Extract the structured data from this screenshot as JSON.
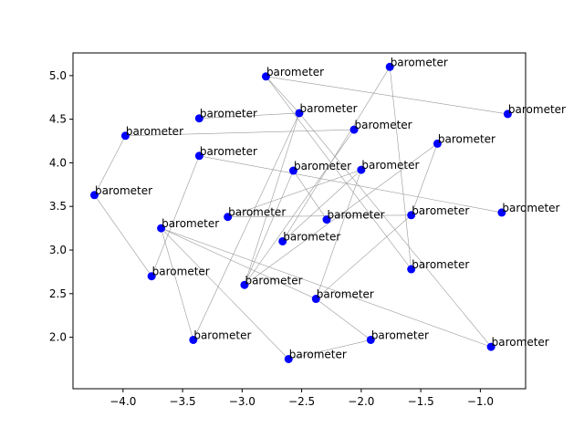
{
  "chart_data": {
    "type": "scatter",
    "title": "",
    "xlabel": "",
    "ylabel": "",
    "xlim": [
      -4.42,
      -0.62
    ],
    "ylim": [
      1.41,
      5.26
    ],
    "xticks": [
      -4.0,
      -3.5,
      -3.0,
      -2.5,
      -2.0,
      -1.5,
      -1.0
    ],
    "xtick_labels": [
      "−4.0",
      "−3.5",
      "−3.0",
      "−2.5",
      "−2.0",
      "−1.5",
      "−1.0"
    ],
    "yticks": [
      2.0,
      2.5,
      3.0,
      3.5,
      4.0,
      4.5,
      5.0
    ],
    "ytick_labels": [
      "2.0",
      "2.5",
      "3.0",
      "3.5",
      "4.0",
      "4.5",
      "5.0"
    ],
    "grid": false,
    "marker_color": "#0000ff",
    "edge_color": "#999999",
    "points": [
      {
        "x": -4.24,
        "y": 3.63,
        "label": "barometer"
      },
      {
        "x": -3.98,
        "y": 4.31,
        "label": "barometer"
      },
      {
        "x": -3.76,
        "y": 2.7,
        "label": "barometer"
      },
      {
        "x": -3.68,
        "y": 3.25,
        "label": "barometer"
      },
      {
        "x": -3.41,
        "y": 1.97,
        "label": "barometer"
      },
      {
        "x": -3.36,
        "y": 4.51,
        "label": "barometer"
      },
      {
        "x": -3.36,
        "y": 4.08,
        "label": "barometer"
      },
      {
        "x": -3.12,
        "y": 3.38,
        "label": "barometer"
      },
      {
        "x": -2.98,
        "y": 2.6,
        "label": "barometer"
      },
      {
        "x": -2.8,
        "y": 4.99,
        "label": "barometer"
      },
      {
        "x": -2.66,
        "y": 3.1,
        "label": "barometer"
      },
      {
        "x": -2.61,
        "y": 1.75,
        "label": "barometer"
      },
      {
        "x": -2.57,
        "y": 3.91,
        "label": "barometer"
      },
      {
        "x": -2.52,
        "y": 4.57,
        "label": "barometer"
      },
      {
        "x": -2.38,
        "y": 2.44,
        "label": "barometer"
      },
      {
        "x": -2.29,
        "y": 3.35,
        "label": "barometer"
      },
      {
        "x": -2.06,
        "y": 4.38,
        "label": "barometer"
      },
      {
        "x": -2.0,
        "y": 3.92,
        "label": "barometer"
      },
      {
        "x": -1.92,
        "y": 1.97,
        "label": "barometer"
      },
      {
        "x": -1.76,
        "y": 5.1,
        "label": "barometer"
      },
      {
        "x": -1.58,
        "y": 3.4,
        "label": "barometer"
      },
      {
        "x": -1.58,
        "y": 2.78,
        "label": "barometer"
      },
      {
        "x": -1.36,
        "y": 4.22,
        "label": "barometer"
      },
      {
        "x": -0.91,
        "y": 1.89,
        "label": "barometer"
      },
      {
        "x": -0.82,
        "y": 3.43,
        "label": "barometer"
      },
      {
        "x": -0.77,
        "y": 4.56,
        "label": "barometer"
      }
    ],
    "edges": [
      [
        0,
        1
      ],
      [
        0,
        2
      ],
      [
        1,
        16
      ],
      [
        2,
        6
      ],
      [
        3,
        4
      ],
      [
        3,
        14
      ],
      [
        3,
        23
      ],
      [
        3,
        11
      ],
      [
        5,
        13
      ],
      [
        6,
        24
      ],
      [
        7,
        17
      ],
      [
        7,
        20
      ],
      [
        8,
        12
      ],
      [
        8,
        22
      ],
      [
        8,
        16
      ],
      [
        8,
        13
      ],
      [
        9,
        25
      ],
      [
        9,
        13
      ],
      [
        9,
        21
      ],
      [
        10,
        17
      ],
      [
        10,
        19
      ],
      [
        11,
        18
      ],
      [
        12,
        15
      ],
      [
        13,
        23
      ],
      [
        14,
        17
      ],
      [
        14,
        20
      ],
      [
        4,
        13
      ],
      [
        18,
        14
      ],
      [
        22,
        20
      ],
      [
        21,
        19
      ]
    ]
  }
}
